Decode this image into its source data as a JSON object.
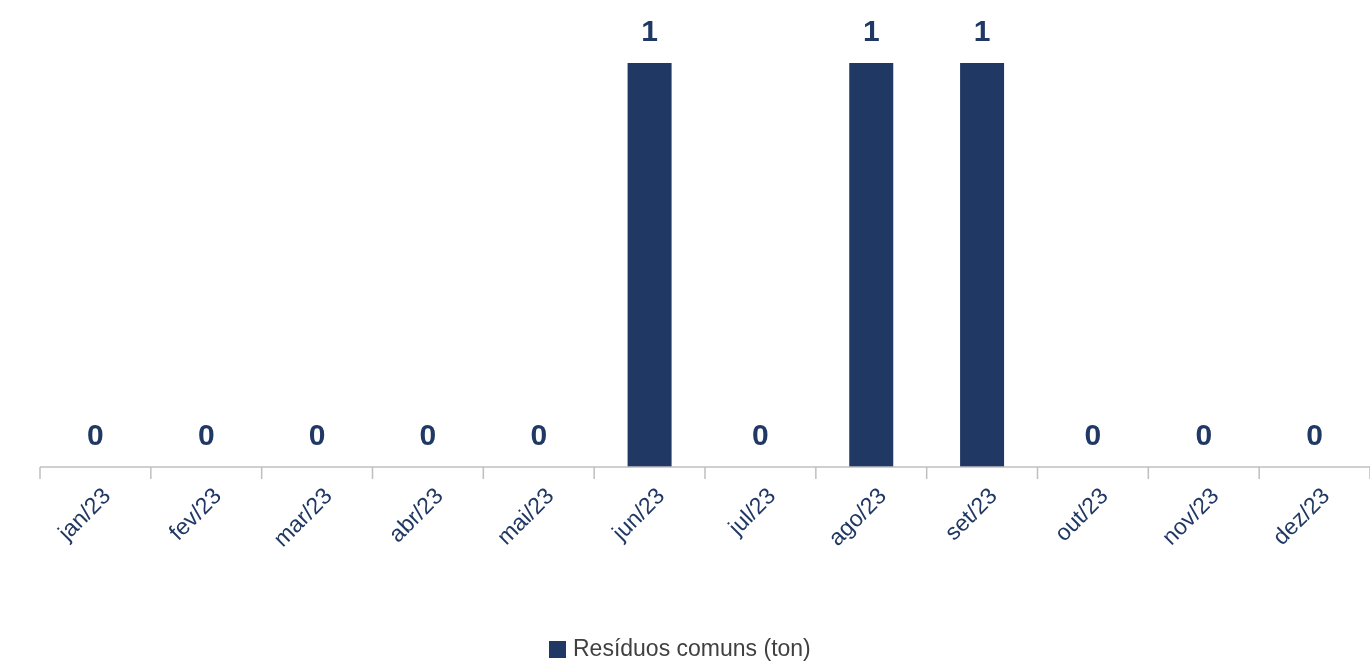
{
  "chart_data": {
    "type": "bar",
    "categories": [
      "jan/23",
      "fev/23",
      "mar/23",
      "abr/23",
      "mai/23",
      "jun/23",
      "jul/23",
      "ago/23",
      "set/23",
      "out/23",
      "nov/23",
      "dez/23"
    ],
    "series": [
      {
        "name": "Resíduos comuns (ton)",
        "color": "#203864",
        "values": [
          0,
          0,
          0,
          0,
          0,
          1,
          0,
          1,
          1,
          0,
          0,
          0
        ]
      }
    ],
    "data_labels": true,
    "legend": "bottom"
  }
}
